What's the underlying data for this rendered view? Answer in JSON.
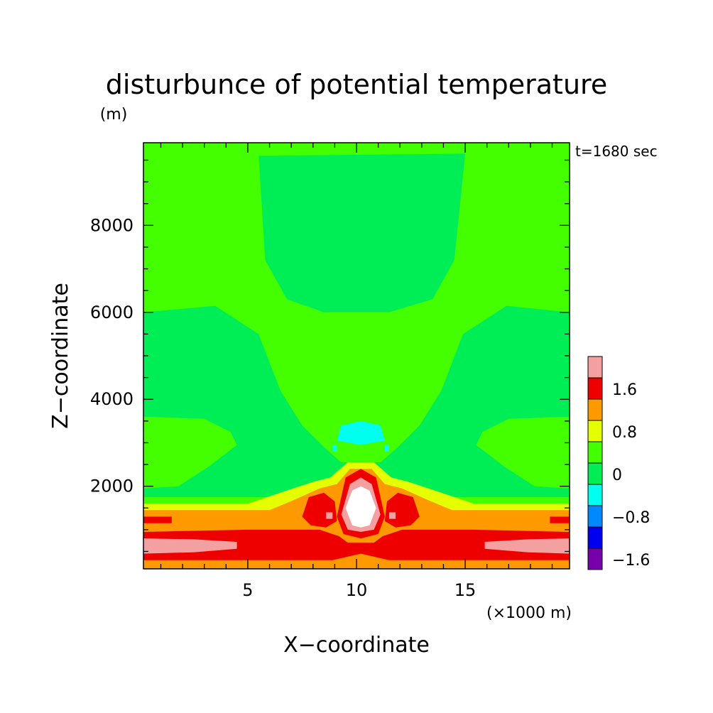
{
  "chart_data": {
    "type": "heatmap",
    "title": "disturbunce of potential temperature",
    "units_label": "(m)",
    "time_label": "t=1680 sec",
    "xlabel": "X−coordinate",
    "ylabel": "Z−coordinate",
    "x_unit_label": "(×1000 m)",
    "xlim": [
      0.2,
      19.8
    ],
    "ylim": [
      100,
      9900
    ],
    "x_ticks": [
      5,
      10,
      15
    ],
    "x_tick_labels": [
      "5",
      "10",
      "15"
    ],
    "y_ticks": [
      2000,
      4000,
      6000,
      8000
    ],
    "y_tick_labels": [
      "2000",
      "4000",
      "6000",
      "8000"
    ],
    "colorbar": {
      "levels": [
        {
          "label": "",
          "color": "#f4a0a0"
        },
        {
          "label": "1.6",
          "color": "#ee0000"
        },
        {
          "label": "",
          "color": "#ff9900"
        },
        {
          "label": "0.8",
          "color": "#e6ff00"
        },
        {
          "label": "",
          "color": "#44ff00"
        },
        {
          "label": "0",
          "color": "#00ee55"
        },
        {
          "label": "",
          "color": "#00ffee"
        },
        {
          "label": "−0.8",
          "color": "#0088ff"
        },
        {
          "label": "",
          "color": "#0000ee"
        },
        {
          "label": "−1.6",
          "color": "#7700aa"
        }
      ]
    },
    "regions": [
      {
        "name": "background-band",
        "color": "#44ff00",
        "points": [
          [
            0.2,
            100
          ],
          [
            19.8,
            100
          ],
          [
            19.8,
            9900
          ],
          [
            0.2,
            9900
          ]
        ]
      },
      {
        "name": "upper-neutral-lobe",
        "color": "#00ee55",
        "points": [
          [
            5.5,
            9600
          ],
          [
            15,
            9650
          ],
          [
            14.5,
            7200
          ],
          [
            13.5,
            6300
          ],
          [
            11.5,
            6000
          ],
          [
            8.5,
            6000
          ],
          [
            6.8,
            6300
          ],
          [
            5.8,
            7200
          ]
        ]
      },
      {
        "name": "central-neutral-region",
        "color": "#00ee55",
        "points": [
          [
            0.2,
            6000
          ],
          [
            3.5,
            6150
          ],
          [
            5.5,
            5500
          ],
          [
            6.5,
            4200
          ],
          [
            7.5,
            3400
          ],
          [
            8.5,
            2900
          ],
          [
            9.3,
            2550
          ],
          [
            11.1,
            2550
          ],
          [
            11.9,
            2900
          ],
          [
            12.9,
            3400
          ],
          [
            13.9,
            4200
          ],
          [
            14.9,
            5500
          ],
          [
            16.9,
            6150
          ],
          [
            19.8,
            6000
          ],
          [
            19.8,
            3600
          ],
          [
            17,
            3550
          ],
          [
            15.8,
            3250
          ],
          [
            15.5,
            2950
          ],
          [
            16.8,
            2450
          ],
          [
            18.2,
            2000
          ],
          [
            19.8,
            1950
          ],
          [
            19.8,
            1750
          ],
          [
            0.2,
            1750
          ],
          [
            0.2,
            1950
          ],
          [
            1.8,
            2000
          ],
          [
            3.2,
            2450
          ],
          [
            4.5,
            2950
          ],
          [
            4.2,
            3250
          ],
          [
            3,
            3550
          ],
          [
            0.2,
            3600
          ]
        ]
      },
      {
        "name": "warm-band-low",
        "color": "#e6ff00",
        "points": [
          [
            0.2,
            1600
          ],
          [
            5,
            1600
          ],
          [
            6.8,
            1900
          ],
          [
            8,
            2100
          ],
          [
            8.8,
            2200
          ],
          [
            9.6,
            2550
          ],
          [
            10.8,
            2550
          ],
          [
            11.6,
            2200
          ],
          [
            12.4,
            2100
          ],
          [
            13.6,
            1900
          ],
          [
            15.4,
            1600
          ],
          [
            19.8,
            1600
          ],
          [
            19.8,
            100
          ],
          [
            0.2,
            100
          ]
        ]
      },
      {
        "name": "warm-band-mid",
        "color": "#ff9900",
        "points": [
          [
            0.2,
            1450
          ],
          [
            6,
            1450
          ],
          [
            7.2,
            1700
          ],
          [
            8.3,
            1950
          ],
          [
            9.1,
            2050
          ],
          [
            9.7,
            2400
          ],
          [
            10.7,
            2400
          ],
          [
            11.3,
            2050
          ],
          [
            12.1,
            1950
          ],
          [
            13.2,
            1700
          ],
          [
            14.4,
            1450
          ],
          [
            19.8,
            1450
          ],
          [
            19.8,
            100
          ],
          [
            0.2,
            100
          ]
        ]
      },
      {
        "name": "warm-core-red",
        "color": "#ee0000",
        "points": [
          [
            9.1,
            1300
          ],
          [
            9.5,
            2200
          ],
          [
            10.2,
            2400
          ],
          [
            10.9,
            2200
          ],
          [
            11.3,
            1300
          ],
          [
            11,
            900
          ],
          [
            10.2,
            800
          ],
          [
            9.4,
            900
          ]
        ]
      },
      {
        "name": "warm-core-pink",
        "color": "#f4a0a0",
        "points": [
          [
            9.3,
            1350
          ],
          [
            9.7,
            2050
          ],
          [
            10.2,
            2200
          ],
          [
            10.7,
            2050
          ],
          [
            11.1,
            1350
          ],
          [
            10.8,
            1000
          ],
          [
            10.2,
            950
          ],
          [
            9.6,
            1000
          ]
        ]
      },
      {
        "name": "warm-core-peak",
        "color": "#ffffff",
        "points": [
          [
            9.5,
            1500
          ],
          [
            9.8,
            1900
          ],
          [
            10.2,
            2000
          ],
          [
            10.6,
            1900
          ],
          [
            10.9,
            1500
          ],
          [
            10.6,
            1100
          ],
          [
            10.2,
            1050
          ],
          [
            9.8,
            1100
          ]
        ]
      },
      {
        "name": "left-warm-lobe",
        "color": "#ee0000",
        "points": [
          [
            7.5,
            1300
          ],
          [
            7.8,
            1750
          ],
          [
            8.5,
            1850
          ],
          [
            9,
            1650
          ],
          [
            9.1,
            1200
          ],
          [
            8.6,
            1050
          ],
          [
            7.9,
            1100
          ]
        ]
      },
      {
        "name": "right-warm-lobe",
        "color": "#ee0000",
        "points": [
          [
            11.3,
            1200
          ],
          [
            11.4,
            1650
          ],
          [
            11.9,
            1850
          ],
          [
            12.6,
            1750
          ],
          [
            12.9,
            1300
          ],
          [
            12.5,
            1100
          ],
          [
            11.8,
            1050
          ]
        ]
      },
      {
        "name": "left-warm-spot",
        "color": "#f4a0a0",
        "points": [
          [
            8.6,
            1250
          ],
          [
            8.9,
            1250
          ],
          [
            8.9,
            1400
          ],
          [
            8.6,
            1400
          ]
        ]
      },
      {
        "name": "right-warm-spot",
        "color": "#f4a0a0",
        "points": [
          [
            11.5,
            1250
          ],
          [
            11.8,
            1250
          ],
          [
            11.8,
            1400
          ],
          [
            11.5,
            1400
          ]
        ]
      },
      {
        "name": "thin-red-layer",
        "color": "#ee0000",
        "points": [
          [
            0.2,
            1150
          ],
          [
            1.5,
            1150
          ],
          [
            1.5,
            1300
          ],
          [
            0.2,
            1300
          ]
        ]
      },
      {
        "name": "thin-red-layer-right",
        "color": "#ee0000",
        "points": [
          [
            18.9,
            1150
          ],
          [
            19.8,
            1150
          ],
          [
            19.8,
            1300
          ],
          [
            18.9,
            1300
          ]
        ]
      },
      {
        "name": "surface-band-red",
        "color": "#ee0000",
        "points": [
          [
            0.2,
            300
          ],
          [
            0.2,
            950
          ],
          [
            5,
            1000
          ],
          [
            8.3,
            1000
          ],
          [
            9.2,
            850
          ],
          [
            9.6,
            700
          ],
          [
            10.2,
            700
          ],
          [
            10.8,
            700
          ],
          [
            11.2,
            850
          ],
          [
            12.1,
            1000
          ],
          [
            15.4,
            1000
          ],
          [
            19.8,
            950
          ],
          [
            19.8,
            300
          ],
          [
            11.5,
            300
          ],
          [
            10.2,
            450
          ],
          [
            8.9,
            300
          ]
        ]
      },
      {
        "name": "surface-pink-left",
        "color": "#f4a0a0",
        "points": [
          [
            0.2,
            450
          ],
          [
            0.2,
            800
          ],
          [
            2.5,
            780
          ],
          [
            4.5,
            720
          ],
          [
            4.5,
            560
          ],
          [
            2.5,
            480
          ]
        ]
      },
      {
        "name": "surface-pink-right",
        "color": "#f4a0a0",
        "points": [
          [
            19.8,
            450
          ],
          [
            19.8,
            800
          ],
          [
            17.9,
            780
          ],
          [
            15.9,
            720
          ],
          [
            15.9,
            560
          ],
          [
            17.9,
            480
          ]
        ]
      },
      {
        "name": "cold-patch",
        "color": "#00ffee",
        "points": [
          [
            9.1,
            3050
          ],
          [
            9.3,
            3400
          ],
          [
            10.2,
            3500
          ],
          [
            11.1,
            3400
          ],
          [
            11.3,
            3050
          ],
          [
            10.2,
            2950
          ]
        ]
      },
      {
        "name": "cold-spot-left",
        "color": "#00ffee",
        "points": [
          [
            8.9,
            2800
          ],
          [
            9.1,
            2800
          ],
          [
            9.1,
            2950
          ],
          [
            8.9,
            2950
          ]
        ]
      },
      {
        "name": "cold-spot-right",
        "color": "#00ffee",
        "points": [
          [
            11.3,
            2800
          ],
          [
            11.5,
            2800
          ],
          [
            11.5,
            2950
          ],
          [
            11.3,
            2950
          ]
        ]
      }
    ]
  }
}
